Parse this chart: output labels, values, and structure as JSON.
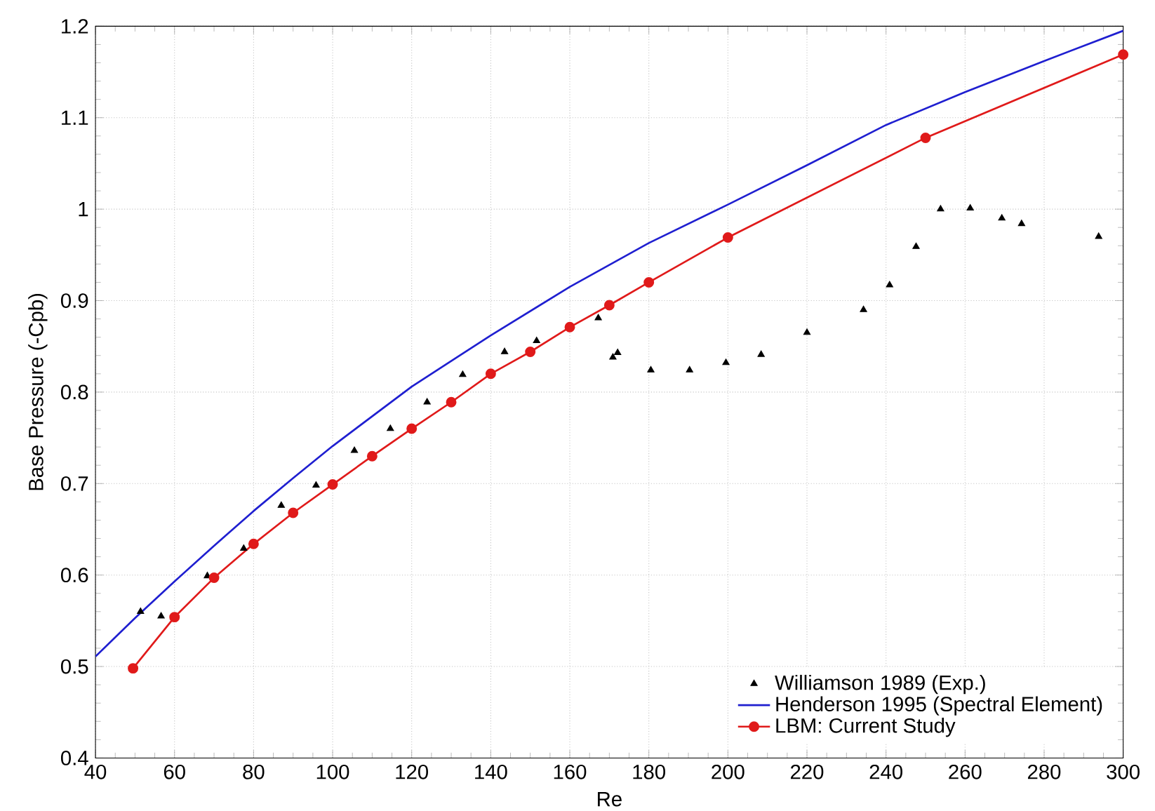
{
  "chart_data": {
    "type": "line",
    "xlabel": "Re",
    "ylabel": "Base Pressure (-Cpb)",
    "xlim": [
      40,
      300
    ],
    "ylim": [
      0.4,
      1.2
    ],
    "xticks": [
      40,
      60,
      80,
      100,
      120,
      140,
      160,
      180,
      200,
      220,
      240,
      260,
      280,
      300
    ],
    "yticks": [
      0.4,
      0.5,
      0.6,
      0.7,
      0.8,
      0.9,
      1,
      1.1,
      1.2
    ],
    "grid": true,
    "legend": "bottom right",
    "series": [
      {
        "name": "Williamson 1989 (Exp.)",
        "type": "scatter",
        "marker": "triangle",
        "color": "#000000",
        "x": [
          51.4,
          56.6,
          68.3,
          77.5,
          87,
          95.8,
          105.5,
          114.6,
          123.9,
          132.9,
          143.5,
          151.6,
          167.2,
          170.9,
          172.1,
          180.5,
          190.3,
          199.5,
          208.4,
          220,
          234.3,
          240.9,
          247.6,
          253.8,
          261.3,
          269.3,
          274.3,
          293.8
        ],
        "values": [
          0.56,
          0.555,
          0.599,
          0.629,
          0.676,
          0.698,
          0.736,
          0.76,
          0.789,
          0.819,
          0.844,
          0.856,
          0.881,
          0.838,
          0.843,
          0.824,
          0.824,
          0.832,
          0.841,
          0.865,
          0.89,
          0.917,
          0.959,
          1.0,
          1.001,
          0.99,
          0.984,
          0.97
        ]
      },
      {
        "name": "Henderson 1995 (Spectral Element)",
        "marker": "none",
        "color": "#1f1fd0",
        "x": [
          40,
          50,
          60,
          70,
          80,
          90,
          100,
          120,
          140,
          160,
          180,
          200,
          220,
          240,
          260,
          280,
          300
        ],
        "values": [
          0.511,
          0.553,
          0.593,
          0.632,
          0.67,
          0.706,
          0.741,
          0.806,
          0.862,
          0.915,
          0.963,
          1.005,
          1.048,
          1.092,
          1.128,
          1.162,
          1.195
        ]
      },
      {
        "name": "LBM: Current Study",
        "marker": "circle",
        "color": "#e01a1a",
        "x": [
          49.5,
          60,
          70,
          80,
          90,
          100,
          110,
          120,
          130,
          140,
          150,
          160,
          170,
          180,
          200,
          250,
          300
        ],
        "values": [
          0.498,
          0.554,
          0.597,
          0.634,
          0.668,
          0.699,
          0.73,
          0.76,
          0.789,
          0.82,
          0.844,
          0.871,
          0.895,
          0.92,
          0.969,
          1.078,
          1.169
        ]
      }
    ]
  }
}
